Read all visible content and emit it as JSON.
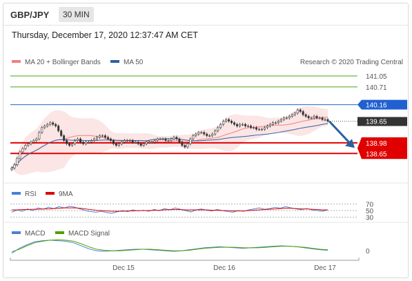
{
  "header": {
    "symbol": "GBP/JPY",
    "timeframe": "30 MIN",
    "timestamp": "Thursday, December 17, 2020 12:37:47 AM CET"
  },
  "legend": {
    "ma20": "MA 20 + Bollinger Bands",
    "ma50": "MA 50",
    "copyright": "Research © 2020 Trading Central",
    "rsi": "RSI",
    "rsi_ma": "9MA",
    "macd": "MACD",
    "macd_signal": "MACD Signal"
  },
  "colors": {
    "ma20": "#f08080",
    "ma50": "#3060a0",
    "green": "#4ea000",
    "blue": "#2060d0",
    "red": "#e00000",
    "dark": "#333333",
    "arrow": "#2d5fa0"
  },
  "chart_data": [
    {
      "type": "candlestick",
      "title": "GBP/JPY 30 MIN",
      "x_tick_labels": [
        "Dec 15",
        "Dec 16",
        "Dec 17"
      ],
      "ylim": [
        137.8,
        141.2
      ],
      "closes": [
        138.2,
        138.3,
        138.5,
        138.7,
        138.8,
        138.9,
        138.95,
        139.0,
        139.05,
        139.1,
        139.3,
        139.45,
        139.5,
        139.55,
        139.6,
        139.55,
        139.5,
        139.35,
        139.2,
        139.05,
        138.95,
        138.9,
        138.95,
        139.05,
        139.1,
        139.0,
        138.95,
        139.0,
        139.0,
        139.05,
        139.1,
        139.15,
        139.2,
        139.2,
        139.15,
        139.1,
        139.05,
        138.95,
        138.9,
        138.95,
        139.0,
        139.05,
        139.05,
        139.05,
        139.0,
        139.0,
        138.95,
        138.9,
        138.95,
        139.0,
        139.0,
        139.0,
        139.05,
        139.1,
        139.1,
        139.1,
        139.05,
        139.05,
        139.1,
        139.15,
        139.1,
        139.0,
        138.9,
        138.85,
        138.95,
        139.1,
        139.2,
        139.25,
        139.3,
        139.3,
        139.25,
        139.2,
        139.2,
        139.25,
        139.35,
        139.45,
        139.55,
        139.65,
        139.7,
        139.65,
        139.6,
        139.55,
        139.5,
        139.55,
        139.55,
        139.5,
        139.5,
        139.45,
        139.45,
        139.4,
        139.4,
        139.4,
        139.45,
        139.5,
        139.55,
        139.6,
        139.6,
        139.65,
        139.7,
        139.75,
        139.75,
        139.8,
        139.85,
        139.9,
        140.0,
        139.95,
        139.85,
        139.8,
        139.75,
        139.75,
        139.8,
        139.75,
        139.75,
        139.7,
        139.7,
        139.65
      ],
      "levels": [
        {
          "label": "141.05",
          "value": 141.05,
          "style": "green"
        },
        {
          "label": "140.71",
          "value": 140.71,
          "style": "green"
        },
        {
          "label": "140.16",
          "value": 140.16,
          "style": "blue"
        },
        {
          "label": "139.65",
          "value": 139.65,
          "style": "dark",
          "note": "last price"
        },
        {
          "label": "138.98",
          "value": 138.98,
          "style": "red"
        },
        {
          "label": "138.65",
          "value": 138.65,
          "style": "red"
        }
      ],
      "series": [
        {
          "name": "MA 20 + Bollinger Bands"
        },
        {
          "name": "MA 50"
        }
      ]
    },
    {
      "type": "line",
      "title": "RSI",
      "y_tick_labels": [
        "70",
        "50",
        "30"
      ],
      "ylim": [
        25,
        75
      ],
      "series": [
        {
          "name": "RSI",
          "values": [
            45,
            52,
            48,
            55,
            50,
            58,
            54,
            60,
            56,
            62,
            58,
            63,
            60,
            55,
            50,
            47,
            45,
            48,
            44,
            42,
            46,
            50,
            47,
            52,
            49,
            51,
            48,
            53,
            50,
            56,
            52,
            58,
            54,
            50,
            46,
            52,
            55,
            51,
            49,
            53,
            50,
            47,
            45,
            50,
            48,
            52,
            55,
            58,
            54,
            56,
            60,
            57,
            62,
            58,
            55,
            53,
            56,
            52,
            50,
            48,
            52
          ]
        },
        {
          "name": "9MA",
          "values": [
            52,
            52,
            53,
            53,
            54,
            54,
            55,
            55,
            56,
            57,
            58,
            58,
            58,
            57,
            55,
            53,
            51,
            50,
            49,
            48,
            48,
            48,
            49,
            49,
            50,
            50,
            50,
            51,
            51,
            52,
            53,
            53,
            53,
            52,
            52,
            52,
            52,
            52,
            51,
            51,
            50,
            50,
            49,
            49,
            49,
            50,
            51,
            52,
            53,
            54,
            55,
            56,
            57,
            57,
            56,
            55,
            55,
            54,
            53,
            52,
            52
          ]
        }
      ]
    },
    {
      "type": "line",
      "title": "MACD",
      "y_tick_labels": [
        "0"
      ],
      "ylim": [
        -0.12,
        0.25
      ],
      "series": [
        {
          "name": "MACD",
          "values": [
            -0.05,
            0.05,
            0.12,
            0.18,
            0.2,
            0.21,
            0.2,
            0.19,
            0.16,
            0.1,
            0.04,
            0.0,
            -0.01,
            0.0,
            0.01,
            0.02,
            0.03,
            0.03,
            0.02,
            0.01,
            0.0,
            -0.01,
            0.0,
            0.02,
            0.04,
            0.06,
            0.07,
            0.08,
            0.07,
            0.06,
            0.05,
            0.06,
            0.07,
            0.08,
            0.09,
            0.1,
            0.09,
            0.08,
            0.06,
            0.04,
            0.02,
            0.01
          ]
        },
        {
          "name": "MACD Signal",
          "values": [
            -0.02,
            0.03,
            0.1,
            0.16,
            0.19,
            0.21,
            0.22,
            0.21,
            0.19,
            0.14,
            0.08,
            0.03,
            0.01,
            0.0,
            0.0,
            0.01,
            0.02,
            0.03,
            0.03,
            0.02,
            0.01,
            0.0,
            0.0,
            0.01,
            0.03,
            0.05,
            0.06,
            0.07,
            0.07,
            0.07,
            0.06,
            0.06,
            0.06,
            0.07,
            0.08,
            0.09,
            0.09,
            0.08,
            0.07,
            0.05,
            0.03,
            0.02
          ]
        }
      ]
    }
  ]
}
